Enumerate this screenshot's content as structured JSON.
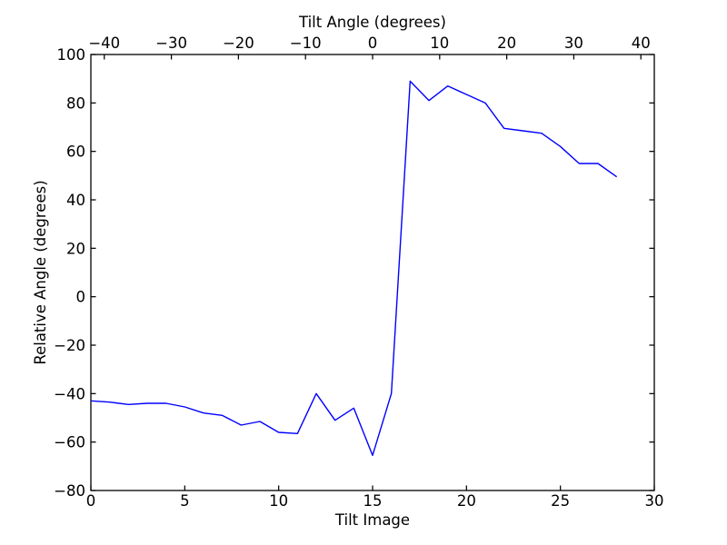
{
  "figure": {
    "background_color": "#ffffff",
    "axis_color": "#000000",
    "tick_label_color": "#000000"
  },
  "chart_data": {
    "type": "line",
    "title": "",
    "xlabel": "Tilt Image",
    "top_xlabel": "Tilt Angle (degrees)",
    "ylabel": "Relative Angle (degrees)",
    "grid": false,
    "legend": "none",
    "series_color": "#0000ff",
    "x": [
      0,
      1,
      2,
      3,
      4,
      5,
      6,
      7,
      8,
      9,
      10,
      11,
      12,
      13,
      14,
      15,
      16,
      17,
      18,
      19,
      20,
      21,
      22,
      23,
      24,
      25,
      26,
      27,
      28
    ],
    "y": [
      -43,
      -43.5,
      -44.5,
      -44,
      -44,
      -45.5,
      -48,
      -49,
      -53,
      -51.5,
      -56,
      -56.5,
      -40,
      -51,
      -46,
      -65.5,
      -40,
      89,
      81,
      87,
      83.5,
      80,
      69.5,
      68.5,
      67.5,
      62,
      55,
      55,
      49.5
    ],
    "xlim_bottom": [
      0,
      30
    ],
    "xlim_top": [
      -42,
      42
    ],
    "ylim": [
      -80,
      100
    ],
    "xticks_bottom": {
      "values": [
        0,
        5,
        10,
        15,
        20,
        25,
        30
      ],
      "labels": [
        "0",
        "5",
        "10",
        "15",
        "20",
        "25",
        "30"
      ]
    },
    "xticks_top": {
      "values": [
        -40,
        -30,
        -20,
        -10,
        0,
        10,
        20,
        30,
        40
      ],
      "labels": [
        "−40",
        "−30",
        "−20",
        "−10",
        "0",
        "10",
        "20",
        "30",
        "40"
      ]
    },
    "yticks": {
      "values": [
        100,
        80,
        60,
        40,
        20,
        0,
        -20,
        -40,
        -60,
        -80
      ],
      "labels": [
        "100",
        "80",
        "60",
        "40",
        "20",
        "0",
        "−20",
        "−40",
        "−60",
        "−80"
      ]
    }
  }
}
